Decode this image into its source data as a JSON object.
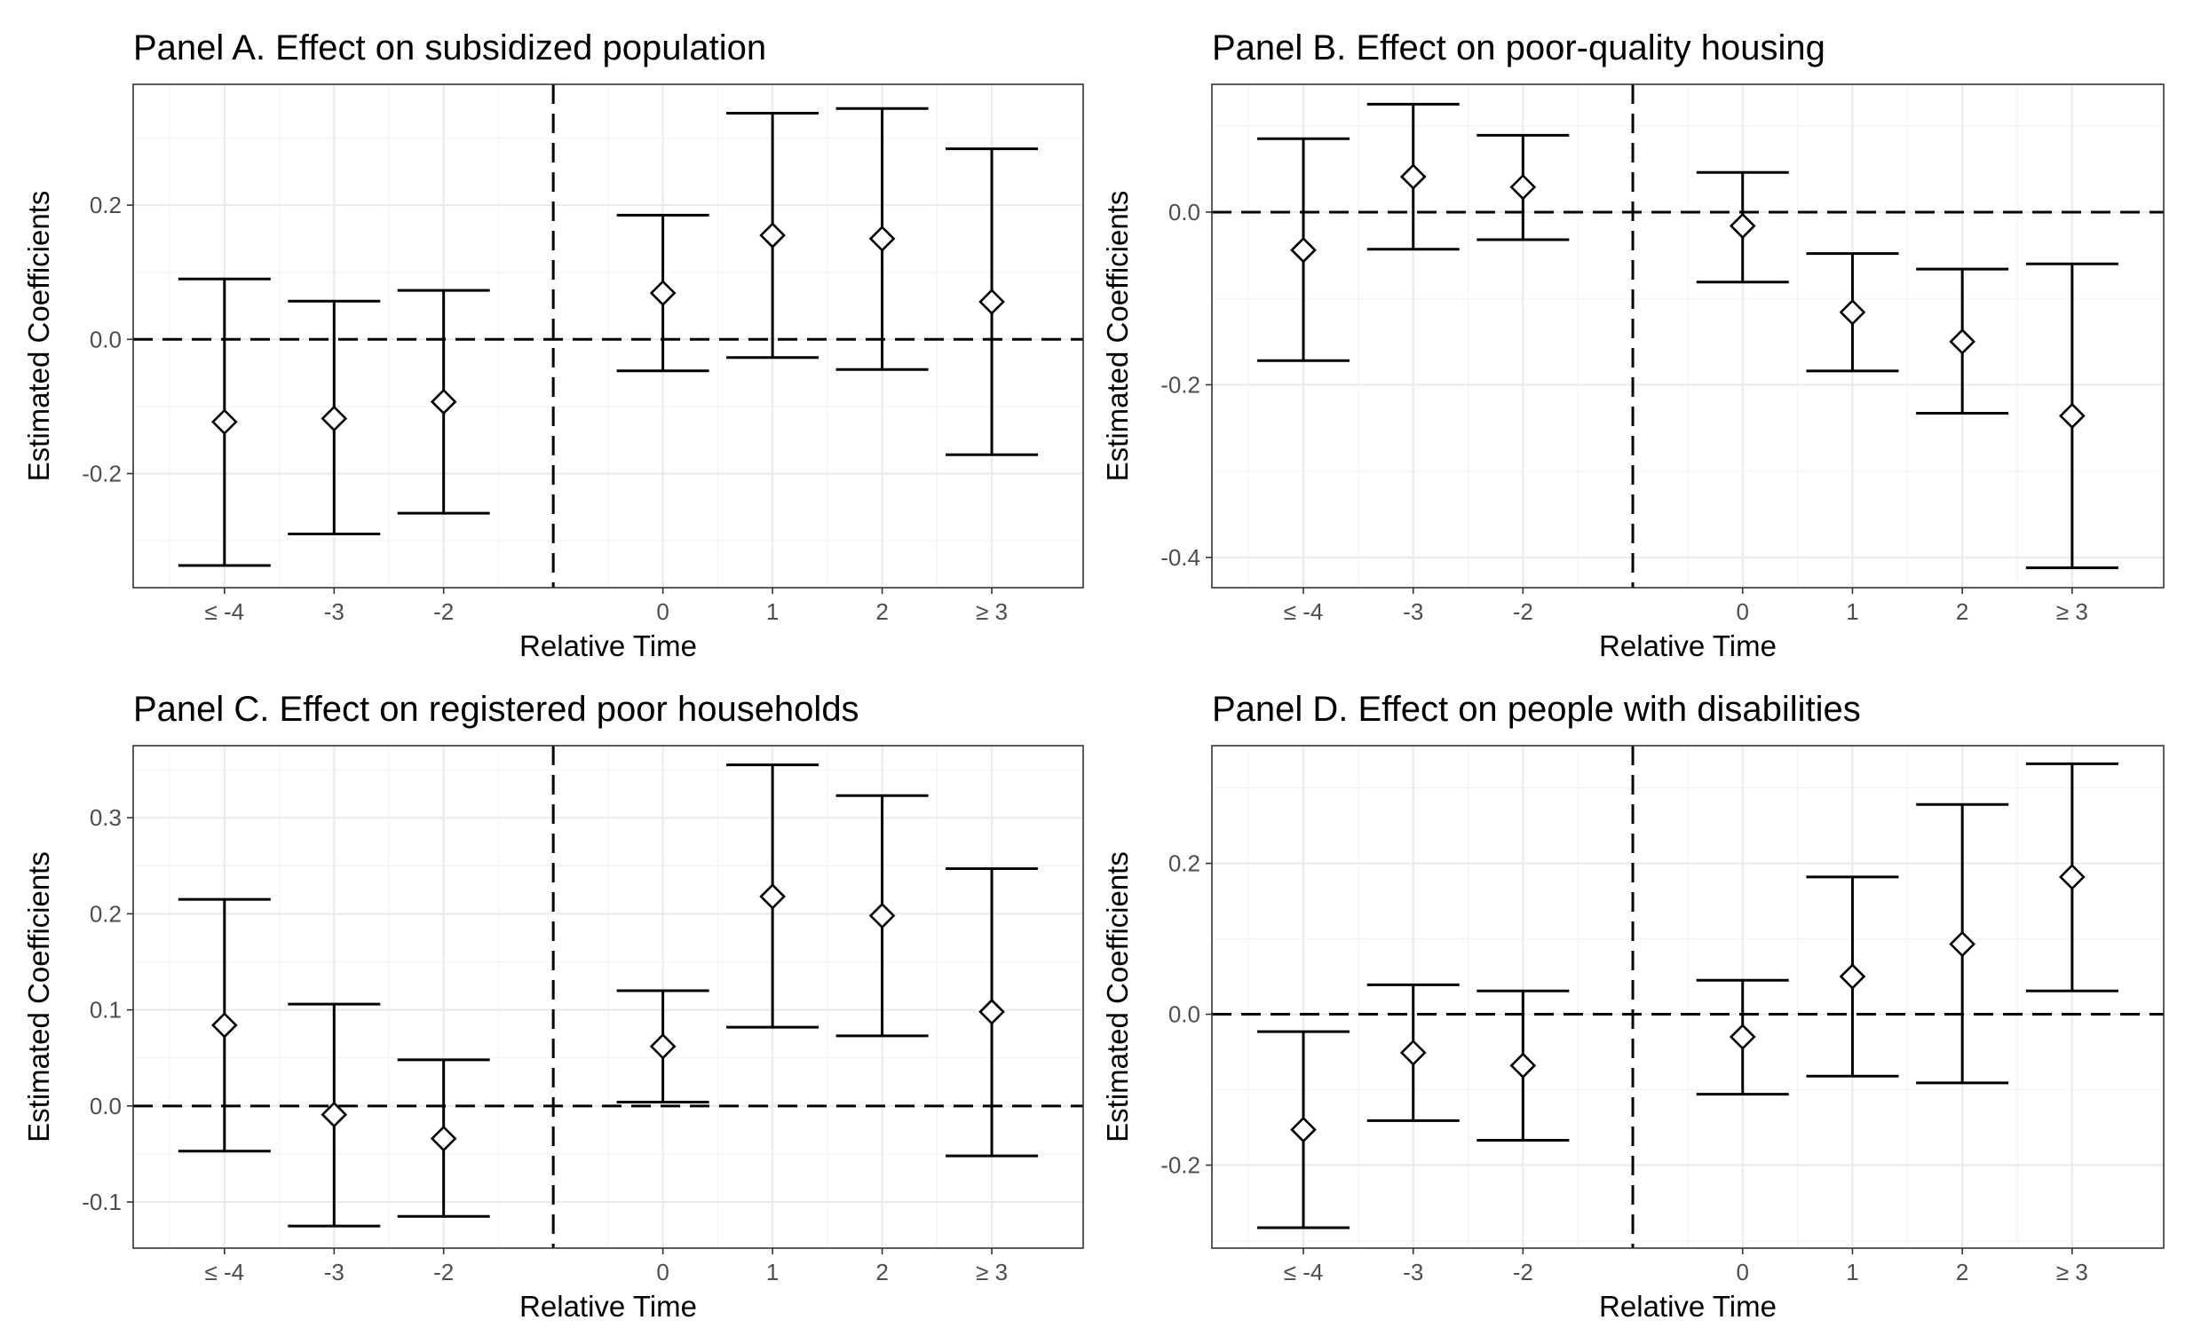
{
  "chart_data": [
    {
      "type": "scatter",
      "title": "Panel A. Effect on subsidized population",
      "xlabel": "Relative Time",
      "ylabel": "Estimated Coefficients",
      "categories": [
        "≤ -4",
        "-3",
        "-2",
        "0",
        "1",
        "2",
        "≥ 3"
      ],
      "ylim": [
        -0.37,
        0.38
      ],
      "yticks": [
        -0.2,
        0.0,
        0.2
      ],
      "ytick_labels": [
        "-0.2",
        "0.0",
        "0.2"
      ],
      "estimates": [
        -0.123,
        -0.118,
        -0.093,
        0.069,
        0.155,
        0.15,
        0.056
      ],
      "ci_lower": [
        -0.337,
        -0.29,
        -0.259,
        -0.047,
        -0.027,
        -0.045,
        -0.172
      ],
      "ci_upper": [
        0.09,
        0.057,
        0.073,
        0.185,
        0.337,
        0.344,
        0.284
      ],
      "grid": true,
      "reference_line_y": 0
    },
    {
      "type": "scatter",
      "title": "Panel B. Effect on poor-quality housing",
      "xlabel": "Relative Time",
      "ylabel": "Estimated Coefficients",
      "categories": [
        "≤ -4",
        "-3",
        "-2",
        "0",
        "1",
        "2",
        "≥ 3"
      ],
      "ylim": [
        -0.435,
        0.148
      ],
      "yticks": [
        -0.4,
        -0.2,
        0.0
      ],
      "ytick_labels": [
        "-0.4",
        "-0.2",
        "0.0"
      ],
      "estimates": [
        -0.044,
        0.041,
        0.029,
        -0.016,
        -0.116,
        -0.15,
        -0.236
      ],
      "ci_lower": [
        -0.172,
        -0.043,
        -0.032,
        -0.081,
        -0.184,
        -0.233,
        -0.412
      ],
      "ci_upper": [
        0.085,
        0.125,
        0.089,
        0.046,
        -0.048,
        -0.066,
        -0.06
      ],
      "grid": true,
      "reference_line_y": 0
    },
    {
      "type": "scatter",
      "title": "Panel C. Effect on registered poor households",
      "xlabel": "Relative Time",
      "ylabel": "Estimated Coefficients",
      "categories": [
        "≤ -4",
        "-3",
        "-2",
        "0",
        "1",
        "2",
        "≥ 3"
      ],
      "ylim": [
        -0.148,
        0.375
      ],
      "yticks": [
        -0.1,
        0.0,
        0.1,
        0.2,
        0.3
      ],
      "ytick_labels": [
        "-0.1",
        "0.0",
        "0.1",
        "0.2",
        "0.3"
      ],
      "estimates": [
        0.084,
        -0.009,
        -0.034,
        0.062,
        0.218,
        0.198,
        0.098
      ],
      "ci_lower": [
        -0.047,
        -0.125,
        -0.115,
        0.004,
        0.082,
        0.073,
        -0.052
      ],
      "ci_upper": [
        0.215,
        0.106,
        0.048,
        0.12,
        0.355,
        0.323,
        0.247
      ],
      "grid": true,
      "reference_line_y": 0
    },
    {
      "type": "scatter",
      "title": "Panel D. Effect on people with disabilities",
      "xlabel": "Relative Time",
      "ylabel": "Estimated Coefficients",
      "categories": [
        "≤ -4",
        "-3",
        "-2",
        "0",
        "1",
        "2",
        "≥ 3"
      ],
      "ylim": [
        -0.31,
        0.356
      ],
      "yticks": [
        -0.2,
        0.0,
        0.2
      ],
      "ytick_labels": [
        "-0.2",
        "0.0",
        "0.2"
      ],
      "estimates": [
        -0.153,
        -0.051,
        -0.068,
        -0.03,
        0.05,
        0.093,
        0.182
      ],
      "ci_lower": [
        -0.283,
        -0.141,
        -0.167,
        -0.106,
        -0.082,
        -0.091,
        0.031
      ],
      "ci_upper": [
        -0.023,
        0.039,
        0.031,
        0.045,
        0.182,
        0.278,
        0.332
      ],
      "grid": true,
      "reference_line_y": 0
    }
  ]
}
